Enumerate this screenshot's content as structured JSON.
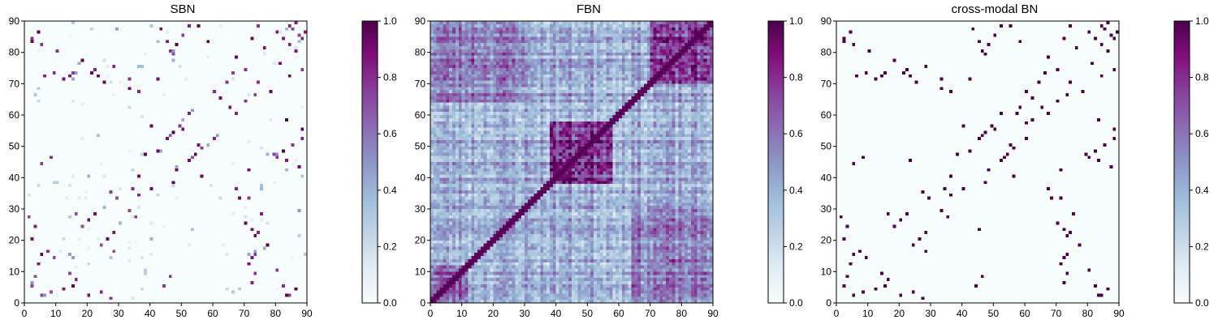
{
  "chart_data": [
    {
      "type": "heatmap",
      "title": "SBN",
      "xlabel": "",
      "ylabel": "",
      "size": 90,
      "xlim": [
        0,
        90
      ],
      "ylim": [
        0,
        90
      ],
      "x_ticks": [
        "0",
        "10",
        "20",
        "30",
        "40",
        "50",
        "60",
        "70",
        "80",
        "90"
      ],
      "y_ticks": [
        "0",
        "10",
        "20",
        "30",
        "40",
        "50",
        "60",
        "70",
        "80",
        "90"
      ],
      "colorbar": {
        "range": [
          0.0,
          1.0
        ],
        "ticks": [
          "0.0",
          "0.2",
          "0.4",
          "0.6",
          "0.8",
          "1.0"
        ]
      },
      "pattern": "sparse",
      "seed": 11,
      "strong_links": [
        [
          2,
          5
        ],
        [
          3,
          8
        ],
        [
          4,
          12
        ],
        [
          5,
          15
        ],
        [
          7,
          16
        ],
        [
          9,
          14
        ],
        [
          1,
          27
        ],
        [
          2,
          20
        ],
        [
          3,
          24
        ],
        [
          16,
          28
        ],
        [
          18,
          24
        ],
        [
          20,
          26
        ],
        [
          22,
          28
        ],
        [
          27,
          35
        ],
        [
          29,
          33
        ],
        [
          34,
          36
        ],
        [
          36,
          40
        ],
        [
          38,
          47
        ],
        [
          40,
          56
        ],
        [
          42,
          48
        ],
        [
          45,
          52
        ],
        [
          47,
          54
        ],
        [
          49,
          56
        ],
        [
          50,
          55
        ],
        [
          52,
          60
        ],
        [
          46,
          53
        ],
        [
          2,
          83
        ],
        [
          4,
          86
        ],
        [
          6,
          72
        ],
        [
          9,
          73
        ],
        [
          12,
          71
        ],
        [
          14,
          72
        ],
        [
          21,
          73
        ],
        [
          23,
          72
        ],
        [
          25,
          70
        ],
        [
          33,
          68
        ],
        [
          36,
          67
        ],
        [
          42,
          71
        ],
        [
          46,
          80
        ],
        [
          48,
          82
        ],
        [
          55,
          88
        ],
        [
          58,
          83
        ],
        [
          60,
          67
        ],
        [
          62,
          65
        ],
        [
          64,
          70
        ],
        [
          66,
          73
        ],
        [
          67,
          78
        ],
        [
          70,
          74
        ],
        [
          72,
          84
        ],
        [
          74,
          88
        ],
        [
          76,
          81
        ],
        [
          80,
          86
        ],
        [
          82,
          84
        ],
        [
          84,
          88
        ],
        [
          85,
          87
        ],
        [
          86,
          89
        ],
        [
          71,
          33
        ],
        [
          73,
          15
        ],
        [
          74,
          22
        ],
        [
          75,
          28
        ],
        [
          77,
          18
        ],
        [
          80,
          10
        ],
        [
          82,
          5
        ],
        [
          84,
          2
        ],
        [
          83,
          45
        ],
        [
          85,
          50
        ],
        [
          88,
          52
        ],
        [
          87,
          43
        ],
        [
          79,
          47
        ],
        [
          5,
          44
        ],
        [
          8,
          46
        ]
      ]
    },
    {
      "type": "heatmap",
      "title": "FBN",
      "xlabel": "",
      "ylabel": "",
      "size": 90,
      "xlim": [
        0,
        90
      ],
      "ylim": [
        0,
        90
      ],
      "x_ticks": [
        "0",
        "10",
        "20",
        "30",
        "40",
        "50",
        "60",
        "70",
        "80",
        "90"
      ],
      "y_ticks": [
        "0",
        "10",
        "20",
        "30",
        "40",
        "50",
        "60",
        "70",
        "80",
        "90"
      ],
      "colorbar": {
        "range": [
          0.0,
          1.0
        ],
        "ticks": [
          "0.0",
          "0.2",
          "0.4",
          "0.6",
          "0.8",
          "1.0"
        ]
      },
      "pattern": "dense",
      "seed": 23,
      "hot_blocks": [
        [
          38,
          58,
          38,
          58,
          0.55
        ],
        [
          70,
          90,
          70,
          90,
          0.45
        ],
        [
          0,
          12,
          0,
          12,
          0.3
        ],
        [
          64,
          90,
          0,
          30,
          0.2
        ]
      ],
      "strong_links": []
    },
    {
      "type": "heatmap",
      "title": "cross-modal BN",
      "xlabel": "",
      "ylabel": "",
      "size": 90,
      "xlim": [
        0,
        90
      ],
      "ylim": [
        0,
        90
      ],
      "x_ticks": [
        "0",
        "10",
        "20",
        "30",
        "40",
        "50",
        "60",
        "70",
        "80",
        "90"
      ],
      "y_ticks": [
        "0",
        "10",
        "20",
        "30",
        "40",
        "50",
        "60",
        "70",
        "80",
        "90"
      ],
      "colorbar": {
        "range": [
          0.0,
          1.0
        ],
        "ticks": [
          "0.0",
          "0.2",
          "0.4",
          "0.6",
          "0.8",
          "1.0"
        ]
      },
      "pattern": "binary",
      "seed": 37,
      "strong_links": [
        [
          2,
          5
        ],
        [
          3,
          8
        ],
        [
          4,
          12
        ],
        [
          5,
          15
        ],
        [
          7,
          16
        ],
        [
          9,
          14
        ],
        [
          1,
          27
        ],
        [
          2,
          20
        ],
        [
          3,
          24
        ],
        [
          16,
          28
        ],
        [
          18,
          24
        ],
        [
          20,
          26
        ],
        [
          22,
          28
        ],
        [
          27,
          35
        ],
        [
          29,
          33
        ],
        [
          34,
          36
        ],
        [
          36,
          40
        ],
        [
          38,
          47
        ],
        [
          40,
          56
        ],
        [
          42,
          48
        ],
        [
          45,
          52
        ],
        [
          47,
          54
        ],
        [
          49,
          56
        ],
        [
          50,
          55
        ],
        [
          52,
          60
        ],
        [
          46,
          53
        ],
        [
          2,
          83
        ],
        [
          4,
          86
        ],
        [
          6,
          72
        ],
        [
          9,
          73
        ],
        [
          12,
          71
        ],
        [
          14,
          72
        ],
        [
          21,
          73
        ],
        [
          23,
          72
        ],
        [
          25,
          70
        ],
        [
          33,
          68
        ],
        [
          36,
          67
        ],
        [
          42,
          71
        ],
        [
          46,
          80
        ],
        [
          48,
          82
        ],
        [
          55,
          88
        ],
        [
          58,
          83
        ],
        [
          60,
          67
        ],
        [
          62,
          65
        ],
        [
          64,
          70
        ],
        [
          66,
          73
        ],
        [
          67,
          78
        ],
        [
          70,
          74
        ],
        [
          72,
          84
        ],
        [
          74,
          88
        ],
        [
          76,
          81
        ],
        [
          80,
          86
        ],
        [
          82,
          84
        ],
        [
          84,
          88
        ],
        [
          85,
          87
        ],
        [
          86,
          89
        ],
        [
          71,
          33
        ],
        [
          73,
          15
        ],
        [
          74,
          22
        ],
        [
          75,
          28
        ],
        [
          77,
          18
        ],
        [
          80,
          10
        ],
        [
          82,
          5
        ],
        [
          84,
          2
        ],
        [
          83,
          45
        ],
        [
          85,
          50
        ],
        [
          88,
          52
        ],
        [
          87,
          43
        ],
        [
          79,
          47
        ],
        [
          5,
          44
        ],
        [
          8,
          46
        ],
        [
          57,
          60
        ],
        [
          62,
          58
        ],
        [
          45,
          23
        ]
      ]
    }
  ],
  "colors": {
    "colormap": [
      "#f7fcfd",
      "#e0ecf4",
      "#bfd3e6",
      "#9ebcda",
      "#8c96c6",
      "#8c6bb1",
      "#88419d",
      "#810f7c",
      "#4d004b"
    ],
    "axis": "#000000"
  }
}
